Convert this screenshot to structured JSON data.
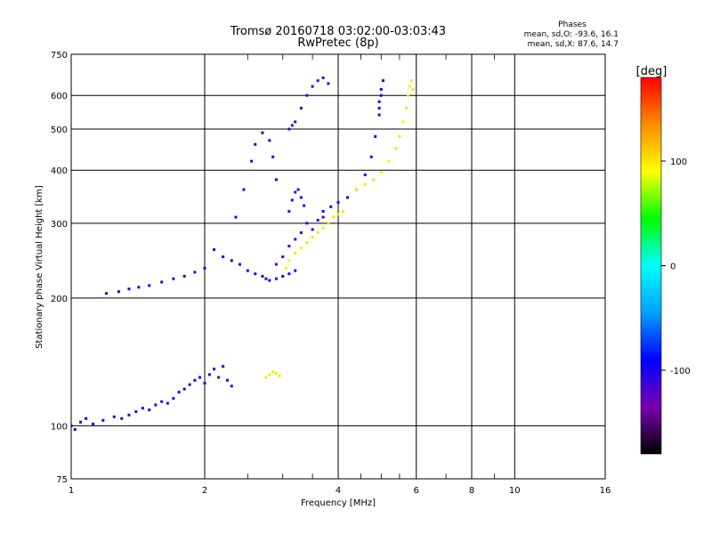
{
  "chart_data": {
    "type": "scatter",
    "title": "Tromsø 20160718 03:02:00-03:03:43",
    "subtitle": "RwPretec (8p)",
    "xlabel": "Frequency [MHz]",
    "ylabel": "Stationary phase Virtual Height [km]",
    "x_scale": "log",
    "y_scale": "log",
    "xlim": [
      1,
      16
    ],
    "ylim": [
      75,
      750
    ],
    "x_ticks": [
      1,
      2,
      4,
      6,
      8,
      10,
      16
    ],
    "x_tick_labels": [
      "1",
      "2",
      "4",
      "6",
      "8",
      "10",
      "16"
    ],
    "y_ticks": [
      75,
      100,
      200,
      300,
      400,
      500,
      600,
      750
    ],
    "y_tick_labels": [
      "75",
      "100",
      "200",
      "300",
      "400",
      "500",
      "600",
      "750"
    ],
    "x_minor_gridlines": [
      2.5,
      3,
      3.5,
      4.5,
      5,
      5.5,
      7,
      9
    ],
    "grid": true,
    "stats_header": "Phases",
    "stats_lines": [
      "mean, sd,O: -93.6, 16.1",
      "mean, sd,X:  87.6, 14.7"
    ],
    "colorbar": {
      "label": "[deg]",
      "range": [
        -180,
        180
      ],
      "ticks": [
        100,
        0,
        -100
      ],
      "tick_labels": [
        "100",
        "0",
        "-100"
      ],
      "colors": [
        "#000000",
        "#7a00b0",
        "#0000ff",
        "#00a0ff",
        "#00ffff",
        "#00ff00",
        "#ffff00",
        "#ff8c00",
        "#ff0000"
      ]
    },
    "series": [
      {
        "phase": -100,
        "x": [
          1.0,
          1.02,
          1.05,
          1.08,
          1.12,
          1.18,
          1.25,
          1.3,
          1.35,
          1.4,
          1.45,
          1.5,
          1.55,
          1.6,
          1.65,
          1.7,
          1.75,
          1.8,
          1.85,
          1.9,
          1.95,
          2.0,
          2.05,
          2.1,
          2.15,
          2.2,
          2.25,
          2.3
        ],
        "y": [
          100,
          98,
          102,
          104,
          101,
          103,
          105,
          104,
          106,
          108,
          110,
          109,
          112,
          114,
          113,
          116,
          120,
          122,
          125,
          128,
          130,
          126,
          132,
          136,
          130,
          138,
          128,
          124
        ]
      },
      {
        "phase": -100,
        "x": [
          2.1,
          2.2,
          2.3,
          2.4,
          2.5,
          2.6,
          2.7,
          2.75,
          2.8,
          2.9,
          3.0,
          3.1,
          3.2
        ],
        "y": [
          260,
          250,
          245,
          240,
          232,
          228,
          225,
          222,
          220,
          222,
          225,
          228,
          232
        ]
      },
      {
        "phase": -100,
        "x": [
          2.35,
          2.45,
          2.55,
          2.6,
          2.7,
          2.8,
          2.85,
          2.9
        ],
        "y": [
          310,
          360,
          420,
          460,
          490,
          470,
          430,
          380
        ]
      },
      {
        "phase": -100,
        "x": [
          3.7,
          3.85,
          4.0,
          4.2,
          4.4,
          4.6,
          4.75,
          4.85,
          4.95
        ],
        "y": [
          320,
          328,
          336,
          345,
          360,
          390,
          430,
          480,
          540
        ]
      },
      {
        "phase": -100,
        "x": [
          4.95,
          5.0,
          5.05,
          5.0,
          4.95
        ],
        "y": [
          580,
          620,
          650,
          600,
          560
        ]
      },
      {
        "phase": -110,
        "x": [
          3.1,
          3.15,
          3.2,
          3.3,
          3.4,
          3.5,
          3.6,
          3.7,
          3.8
        ],
        "y": [
          500,
          510,
          520,
          560,
          600,
          630,
          650,
          660,
          640
        ]
      },
      {
        "phase": -110,
        "x": [
          2.9,
          3.0,
          3.1,
          3.2,
          3.3,
          3.4,
          3.5,
          3.6,
          3.7
        ],
        "y": [
          240,
          250,
          265,
          275,
          285,
          300,
          290,
          305,
          310
        ]
      },
      {
        "phase": -110,
        "x": [
          3.1,
          3.15,
          3.2,
          3.25,
          3.3,
          3.35
        ],
        "y": [
          320,
          340,
          355,
          360,
          345,
          330
        ]
      },
      {
        "phase": -100,
        "x": [
          1.2,
          1.28,
          1.35,
          1.42,
          1.5,
          1.6,
          1.7,
          1.8,
          1.9,
          2.0
        ],
        "y": [
          205,
          207,
          210,
          212,
          214,
          218,
          222,
          225,
          230,
          235
        ]
      },
      {
        "phase": 100,
        "x": [
          3.05,
          3.1,
          3.2,
          3.3,
          3.4,
          3.5,
          3.6,
          3.7,
          3.8,
          3.9,
          4.0,
          4.1
        ],
        "y": [
          235,
          245,
          255,
          262,
          270,
          278,
          285,
          292,
          300,
          310,
          315,
          320
        ]
      },
      {
        "phase": 100,
        "x": [
          4.4,
          4.6,
          4.8,
          5.0,
          5.2,
          5.4,
          5.5,
          5.6,
          5.7,
          5.75,
          5.8,
          5.85,
          5.9
        ],
        "y": [
          360,
          370,
          380,
          395,
          420,
          450,
          480,
          520,
          560,
          600,
          630,
          650,
          620
        ]
      },
      {
        "phase": 100,
        "x": [
          2.75,
          2.8,
          2.85,
          2.9,
          2.95
        ],
        "y": [
          130,
          132,
          134,
          133,
          131
        ]
      }
    ]
  }
}
